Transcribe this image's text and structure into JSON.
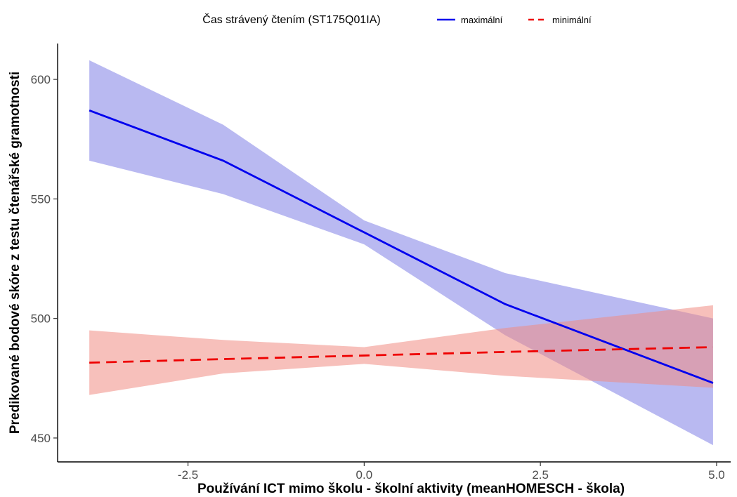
{
  "chart_data": {
    "type": "line",
    "title": "",
    "xlabel": "Používání ICT mimo školu - školní aktivity (meanHOMESCH - škola)",
    "ylabel": "Predikované bodové skóre z testu čtenářské gramotnosti",
    "xlim": [
      -4.35,
      5.2
    ],
    "ylim": [
      440,
      615
    ],
    "x_ticks": [
      -2.5,
      0.0,
      2.5,
      5.0
    ],
    "x_tick_labels": [
      "-2.5",
      "0.0",
      "2.5",
      "5.0"
    ],
    "y_ticks": [
      450,
      500,
      550,
      600
    ],
    "y_tick_labels": [
      "450",
      "500",
      "550",
      "600"
    ],
    "grid": false,
    "legend": {
      "title": "Čas strávený čtením (ST175Q01IA)",
      "placement": "top"
    },
    "series": [
      {
        "name": "maximální",
        "color": "#0000ee",
        "ribbon_color": "#8080e6",
        "line_style": "solid",
        "x": [
          -3.9,
          -2.0,
          0.0,
          2.0,
          4.95
        ],
        "y": [
          587,
          566,
          536,
          506,
          473
        ],
        "lower": [
          566,
          552,
          531,
          493,
          447
        ],
        "upper": [
          608,
          581,
          541,
          519,
          500
        ]
      },
      {
        "name": "minimální",
        "color": "#ee0000",
        "ribbon_color": "#f08c84",
        "line_style": "dashed",
        "x": [
          -3.9,
          -2.0,
          0.0,
          2.0,
          4.95
        ],
        "y": [
          481.5,
          483,
          484.5,
          486,
          488
        ],
        "lower": [
          468,
          477,
          481,
          476,
          471
        ],
        "upper": [
          495,
          491,
          488,
          496,
          505.5
        ]
      }
    ]
  }
}
